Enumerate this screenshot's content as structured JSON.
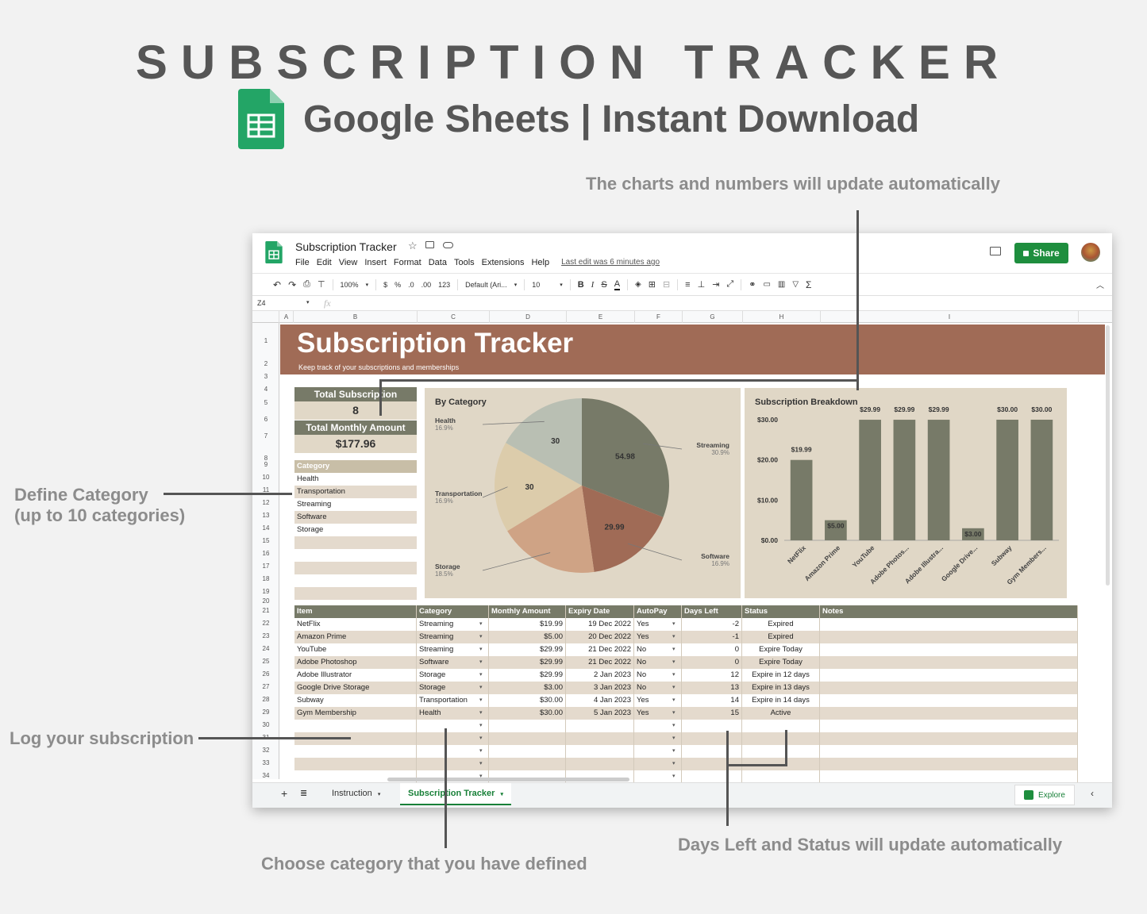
{
  "hero": {
    "title": "SUBSCRIPTION TRACKER",
    "subtitle": "Google Sheets | Instant Download"
  },
  "annotations": {
    "charts_auto": "The charts and numbers will update automatically",
    "define_category_l1": "Define Category",
    "define_category_l2": "(up to 10 categories)",
    "log_subscription": "Log your subscription",
    "choose_category": "Choose category that you have defined",
    "days_left_auto": "Days Left and Status will update automatically"
  },
  "sheets": {
    "doc_title": "Subscription Tracker",
    "menu": [
      "File",
      "Edit",
      "View",
      "Insert",
      "Format",
      "Data",
      "Tools",
      "Extensions",
      "Help"
    ],
    "last_edit": "Last edit was 6 minutes ago",
    "share_label": "Share",
    "toolbar": {
      "zoom": "100%",
      "currency": "$",
      "percent": "%",
      "dec_less": ".0",
      "dec_more": ".00",
      "format_more": "123",
      "font": "Default (Ari...",
      "font_size": "10",
      "bold": "B",
      "italic": "I",
      "strike": "S",
      "text_color": "A",
      "sigma": "Σ"
    },
    "name_box": "Z4",
    "fx": "fx",
    "columns": [
      "A",
      "B",
      "C",
      "D",
      "E",
      "F",
      "G",
      "H",
      "I"
    ],
    "rows": [
      "1",
      "2",
      "3",
      "4",
      "5",
      "6",
      "7",
      "8",
      "9",
      "10",
      "11",
      "12",
      "13",
      "14",
      "15",
      "16",
      "17",
      "18",
      "19",
      "20",
      "21",
      "22",
      "23",
      "24",
      "25",
      "26",
      "27",
      "28",
      "29",
      "30",
      "31",
      "32",
      "33",
      "34"
    ],
    "banner_title": "Subscription Tracker",
    "banner_sub": "Keep track of your subscriptions and memberships",
    "total_subs_label": "Total Subscription",
    "total_subs_value": "8",
    "total_monthly_label": "Total Monthly Amount",
    "total_monthly_value": "$177.96",
    "category_header": "Category",
    "categories": [
      "Health",
      "Transportation",
      "Streaming",
      "Software",
      "Storage",
      "",
      "",
      "",
      "",
      ""
    ],
    "table": {
      "headers": [
        "Item",
        "Category",
        "Monthly Amount",
        "Expiry Date",
        "AutoPay",
        "Days Left",
        "Status",
        "Notes"
      ],
      "rows": [
        [
          "NetFlix",
          "Streaming",
          "$19.99",
          "19 Dec 2022",
          "Yes",
          "-2",
          "Expired",
          ""
        ],
        [
          "Amazon Prime",
          "Streaming",
          "$5.00",
          "20 Dec 2022",
          "Yes",
          "-1",
          "Expired",
          ""
        ],
        [
          "YouTube",
          "Streaming",
          "$29.99",
          "21 Dec 2022",
          "No",
          "0",
          "Expire Today",
          ""
        ],
        [
          "Adobe Photoshop",
          "Software",
          "$29.99",
          "21 Dec 2022",
          "No",
          "0",
          "Expire Today",
          ""
        ],
        [
          "Adobe Illustrator",
          "Storage",
          "$29.99",
          "2 Jan 2023",
          "No",
          "12",
          "Expire in 12 days",
          ""
        ],
        [
          "Google Drive Storage",
          "Storage",
          "$3.00",
          "3 Jan 2023",
          "No",
          "13",
          "Expire in 13 days",
          ""
        ],
        [
          "Subway",
          "Transportation",
          "$30.00",
          "4 Jan 2023",
          "Yes",
          "14",
          "Expire in 14 days",
          ""
        ],
        [
          "Gym Membership",
          "Health",
          "$30.00",
          "5 Jan 2023",
          "Yes",
          "15",
          "Active",
          ""
        ],
        [
          "",
          "",
          "",
          "",
          "",
          "",
          "",
          ""
        ],
        [
          "",
          "",
          "",
          "",
          "",
          "",
          "",
          ""
        ],
        [
          "",
          "",
          "",
          "",
          "",
          "",
          "",
          ""
        ],
        [
          "",
          "",
          "",
          "",
          "",
          "",
          "",
          ""
        ],
        [
          "",
          "",
          "",
          "",
          "",
          "",
          "",
          ""
        ]
      ]
    },
    "tabs": [
      "Instruction",
      "Subscription Tracker"
    ],
    "explore_label": "Explore"
  },
  "colors": {
    "banner": "#a06b56",
    "olive": "#777a68",
    "beige": "#e0d7c6",
    "sheets_green": "#1e8e3e"
  },
  "chart_data": [
    {
      "type": "pie",
      "title": "By Category",
      "slices": [
        {
          "label": "Streaming",
          "percent": "30.9%",
          "value": 54.98,
          "color": "#777a68"
        },
        {
          "label": "Software",
          "percent": "16.9%",
          "value": 29.99,
          "color": "#a06b56"
        },
        {
          "label": "Storage",
          "percent": "18.5%",
          "value": 32.99,
          "color": "#cfa385"
        },
        {
          "label": "Transportation",
          "percent": "16.9%",
          "value": 30,
          "color": "#dcccab"
        },
        {
          "label": "Health",
          "percent": "16.9%",
          "value": 30,
          "color": "#b9bfb3"
        }
      ],
      "data_labels": [
        "54.98",
        "29.99",
        "30",
        "30"
      ]
    },
    {
      "type": "bar",
      "title": "Subscription Breakdown",
      "categories": [
        "NetFlix",
        "Amazon Prime",
        "YouTube",
        "Adobe Photos...",
        "Adobe Illustra...",
        "Google Drive...",
        "Subway",
        "Gym Members..."
      ],
      "values": [
        19.99,
        5.0,
        29.99,
        29.99,
        29.99,
        3.0,
        30.0,
        30.0
      ],
      "value_labels": [
        "$19.99",
        "$5.00",
        "$29.99",
        "$29.99",
        "$29.99",
        "$3.00",
        "$30.00",
        "$30.00"
      ],
      "y_ticks": [
        "$0.00",
        "$10.00",
        "$20.00",
        "$30.00"
      ],
      "ylim": [
        0,
        30
      ]
    }
  ]
}
